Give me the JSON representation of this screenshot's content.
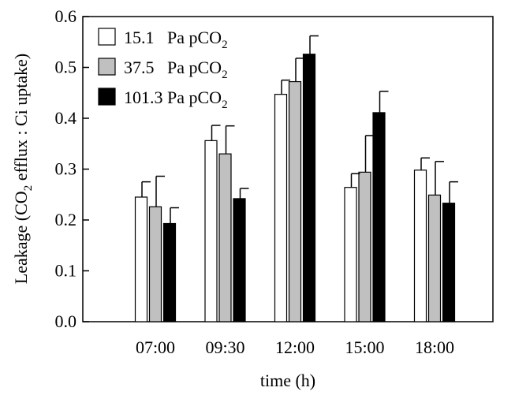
{
  "chart_data": {
    "type": "bar",
    "categories": [
      "07:00",
      "09:30",
      "12:00",
      "15:00",
      "18:00"
    ],
    "series": [
      {
        "name_main": "15.1   Pa pCO",
        "name_sub": "2",
        "color": "#ffffff",
        "values": [
          0.245,
          0.356,
          0.447,
          0.264,
          0.298
        ],
        "errors": [
          0.03,
          0.03,
          0.028,
          0.027,
          0.024
        ]
      },
      {
        "name_main": "37.5   Pa pCO",
        "name_sub": "2",
        "color": "#c0c0c0",
        "values": [
          0.226,
          0.33,
          0.472,
          0.294,
          0.249
        ],
        "errors": [
          0.06,
          0.055,
          0.046,
          0.072,
          0.066
        ]
      },
      {
        "name_main": "101.3 Pa pCO",
        "name_sub": "2",
        "color": "#000000",
        "values": [
          0.193,
          0.242,
          0.526,
          0.411,
          0.233
        ],
        "errors": [
          0.031,
          0.02,
          0.036,
          0.042,
          0.042
        ]
      }
    ],
    "ylim": [
      0.0,
      0.6
    ],
    "yticks": [
      "0.0",
      "0.1",
      "0.2",
      "0.3",
      "0.4",
      "0.5",
      "0.6"
    ],
    "xlabel": "time (h)",
    "ylabel": {
      "part1": "Leakage (CO",
      "sub": "2",
      "part2": " efflux : Ci uptake)"
    },
    "legend_position": "top-left",
    "grid": false
  }
}
